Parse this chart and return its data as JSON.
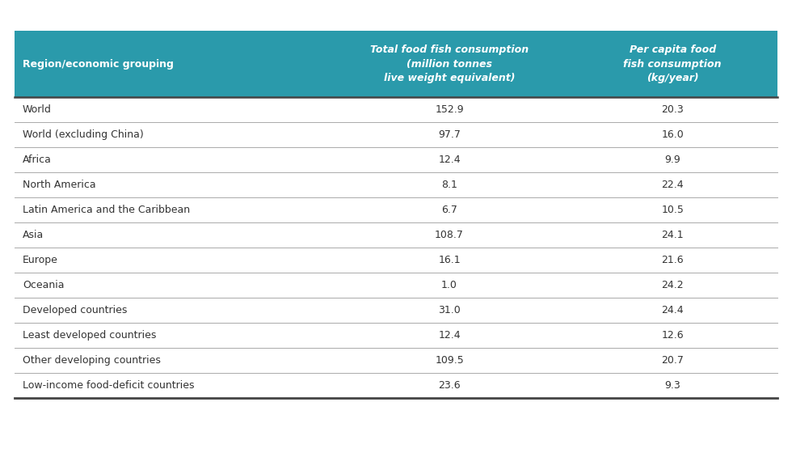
{
  "header_bg_color": "#2a9aab",
  "header_text_color": "#ffffff",
  "row_text_color": "#333333",
  "bg_color": "#ffffff",
  "divider_color": "#aaaaaa",
  "bottom_border_color": "#444444",
  "col0_header": "Region/economic grouping",
  "col1_header": "Total food fish consumption\n(million tonnes\nlive weight equivalent)",
  "col2_header": "Per capita food\nfish consumption\n(kg/year)",
  "rows": [
    [
      "World",
      "152.9",
      "20.3"
    ],
    [
      "World (excluding China)",
      "97.7",
      "16.0"
    ],
    [
      "Africa",
      "12.4",
      "9.9"
    ],
    [
      "North America",
      "8.1",
      "22.4"
    ],
    [
      "Latin America and the Caribbean",
      "6.7",
      "10.5"
    ],
    [
      "Asia",
      "108.7",
      "24.1"
    ],
    [
      "Europe",
      "16.1",
      "21.6"
    ],
    [
      "Oceania",
      "1.0",
      "24.2"
    ],
    [
      "Developed countries",
      "31.0",
      "24.4"
    ],
    [
      "Least developed countries",
      "12.4",
      "12.6"
    ],
    [
      "Other developing countries",
      "109.5",
      "20.7"
    ],
    [
      "Low-income food-deficit countries",
      "23.6",
      "9.3"
    ]
  ],
  "header_fontsize": 9.0,
  "row_fontsize": 9.0,
  "fig_width": 9.8,
  "fig_height": 5.6,
  "dpi": 100
}
